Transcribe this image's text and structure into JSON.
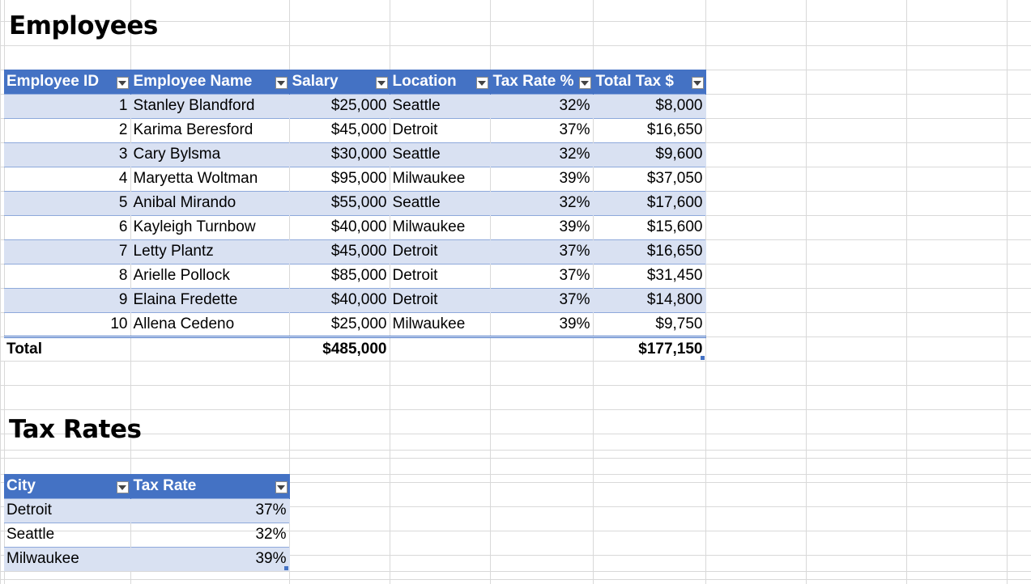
{
  "employees": {
    "title": "Employees",
    "headers": [
      "Employee ID",
      "Employee Name",
      "Salary",
      "Location",
      "Tax Rate %",
      "Total Tax $"
    ],
    "rows": [
      [
        "1",
        "Stanley Blandford",
        "$25,000",
        "Seattle",
        "32%",
        "$8,000"
      ],
      [
        "2",
        "Karima Beresford",
        "$45,000",
        "Detroit",
        "37%",
        "$16,650"
      ],
      [
        "3",
        "Cary Bylsma",
        "$30,000",
        "Seattle",
        "32%",
        "$9,600"
      ],
      [
        "4",
        "Maryetta Woltman",
        "$95,000",
        "Milwaukee",
        "39%",
        "$37,050"
      ],
      [
        "5",
        "Anibal Mirando",
        "$55,000",
        "Seattle",
        "32%",
        "$17,600"
      ],
      [
        "6",
        "Kayleigh Turnbow",
        "$40,000",
        "Milwaukee",
        "39%",
        "$15,600"
      ],
      [
        "7",
        "Letty Plantz",
        "$45,000",
        "Detroit",
        "37%",
        "$16,650"
      ],
      [
        "8",
        "Arielle Pollock",
        "$85,000",
        "Detroit",
        "37%",
        "$31,450"
      ],
      [
        "9",
        "Elaina Fredette",
        "$40,000",
        "Detroit",
        "37%",
        "$14,800"
      ],
      [
        "10",
        "Allena Cedeno",
        "$25,000",
        "Milwaukee",
        "39%",
        "$9,750"
      ]
    ],
    "total": {
      "label": "Total",
      "salary": "$485,000",
      "tax": "$177,150"
    }
  },
  "tax_rates": {
    "title": "Tax Rates",
    "headers": [
      "City",
      "Tax Rate"
    ],
    "rows": [
      [
        "Detroit",
        "37%"
      ],
      [
        "Seattle",
        "32%"
      ],
      [
        "Milwaukee",
        "39%"
      ]
    ]
  },
  "colors": {
    "header": "#4472c4",
    "band": "#d9e1f2",
    "grid": "#d9d9d9"
  }
}
